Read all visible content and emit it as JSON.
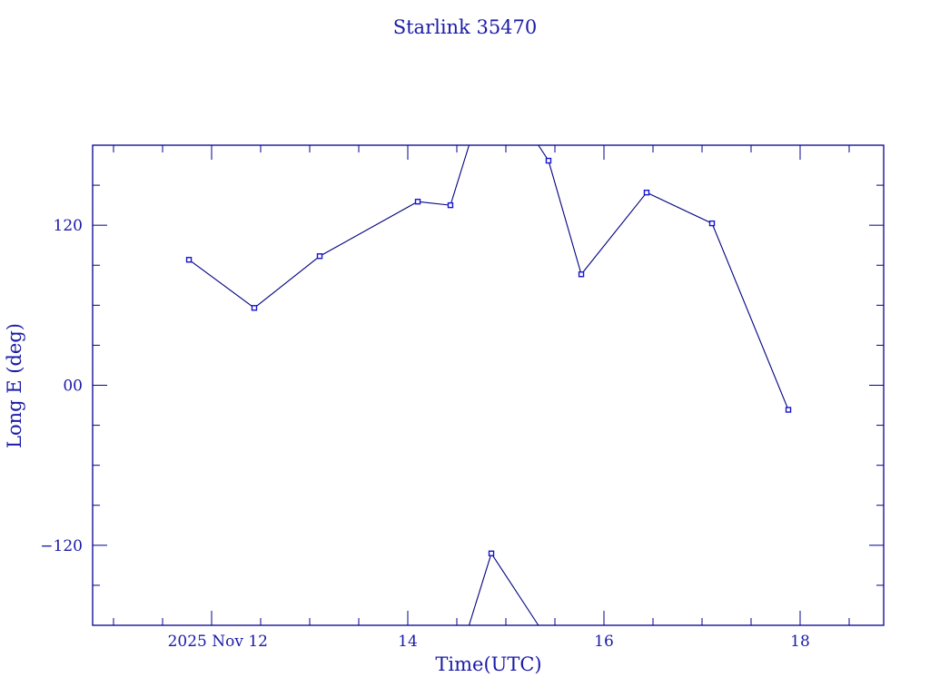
{
  "chart_data": {
    "type": "line",
    "title": "Starlink 35470",
    "xlabel": "Time(UTC)",
    "ylabel": "Long E (deg)",
    "xlim": [
      10.787,
      18.852
    ],
    "ylim": [
      -180,
      180
    ],
    "x_ticks": [
      12,
      14,
      16,
      18
    ],
    "x_tick_labels": [
      "2025 Nov 12",
      "14",
      "16",
      "18"
    ],
    "y_ticks": [
      120,
      0,
      -120
    ],
    "y_tick_labels": [
      "120",
      "00",
      "−120"
    ],
    "wrap_longitude": true,
    "grid": false,
    "series": [
      {
        "name": "Starlink 35470",
        "x": [
          11.769,
          12.435,
          13.102,
          14.102,
          14.435,
          14.852,
          15.435,
          15.769,
          16.435,
          17.102,
          17.88
        ],
        "y": [
          94.1,
          58.0,
          96.8,
          137.7,
          135.0,
          -126.1,
          168.4,
          83.2,
          144.5,
          121.4,
          -18.4
        ]
      }
    ],
    "colors": {
      "line": "#000080",
      "marker": "#1515d0",
      "axes": "#000090",
      "text": "#1a1aa8"
    }
  }
}
